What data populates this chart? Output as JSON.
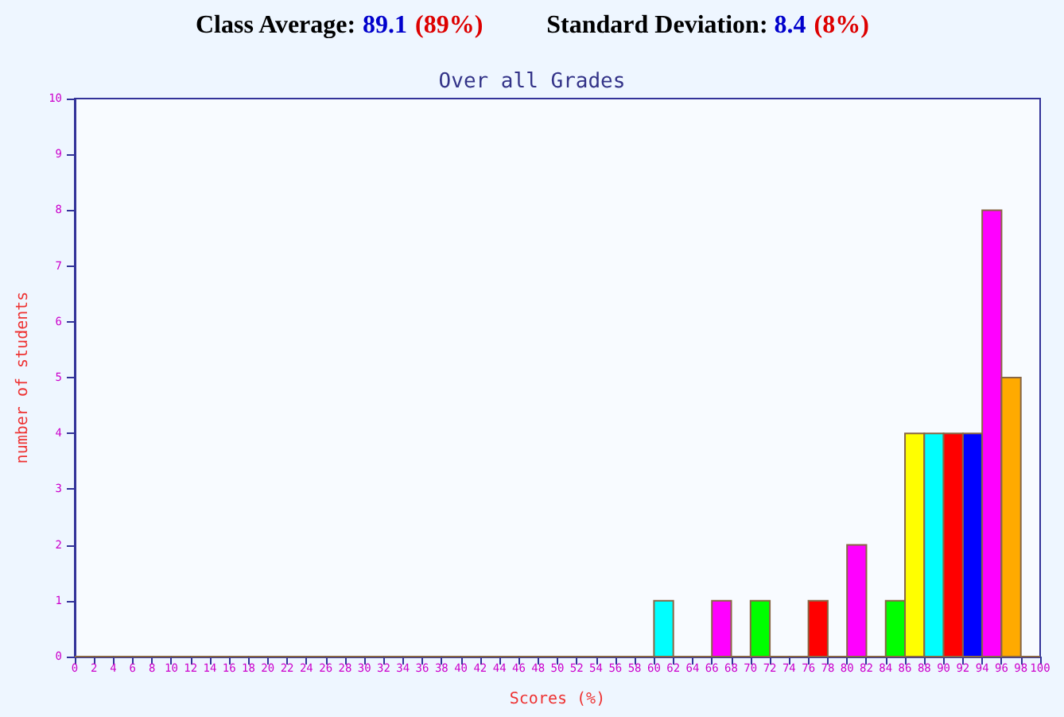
{
  "chart_data": {
    "type": "histogram",
    "title": "Over all Grades",
    "xlabel": "Scores (%)",
    "ylabel": "number of students",
    "annotations": [
      "Class Average: 89.1 (89%)",
      "Standard Deviation: 8.4 (8%)"
    ],
    "bins": [
      0,
      2,
      4,
      6,
      8,
      10,
      12,
      14,
      16,
      18,
      20,
      22,
      24,
      26,
      28,
      30,
      32,
      34,
      36,
      38,
      40,
      42,
      44,
      46,
      48,
      50,
      52,
      54,
      56,
      58,
      60,
      62,
      64,
      66,
      68,
      70,
      72,
      74,
      76,
      78,
      80,
      82,
      84,
      86,
      88,
      90,
      92,
      94,
      96,
      98,
      100
    ],
    "values": [
      0,
      0,
      0,
      0,
      0,
      0,
      0,
      0,
      0,
      0,
      0,
      0,
      0,
      0,
      0,
      0,
      0,
      0,
      0,
      0,
      0,
      0,
      0,
      0,
      0,
      0,
      0,
      0,
      0,
      0,
      1,
      0,
      0,
      1,
      0,
      1,
      0,
      0,
      1,
      0,
      2,
      0,
      1,
      4,
      4,
      4,
      4,
      8,
      5,
      0
    ],
    "colors": [
      null,
      null,
      null,
      null,
      null,
      null,
      null,
      null,
      null,
      null,
      null,
      null,
      null,
      null,
      null,
      null,
      null,
      null,
      null,
      null,
      null,
      null,
      null,
      null,
      null,
      null,
      null,
      null,
      null,
      null,
      "#00ffff",
      null,
      null,
      "#ff00ff",
      null,
      "#00ff00",
      null,
      null,
      "#ff0000",
      null,
      "#ff00ff",
      null,
      "#00ff00",
      "#ffff00",
      "#00ffff",
      "#ff0000",
      "#0000ff",
      "#ff00ff",
      "#ffaa00",
      null
    ],
    "xlim": [
      0,
      100
    ],
    "xticks": [
      0,
      2,
      4,
      6,
      8,
      10,
      12,
      14,
      16,
      18,
      20,
      22,
      24,
      26,
      28,
      30,
      32,
      34,
      36,
      38,
      40,
      42,
      44,
      46,
      48,
      50,
      52,
      54,
      56,
      58,
      60,
      62,
      64,
      66,
      68,
      70,
      72,
      74,
      76,
      78,
      80,
      82,
      84,
      86,
      88,
      90,
      92,
      94,
      96,
      98,
      100
    ],
    "ylim": [
      0,
      10
    ],
    "yticks": [
      0,
      1,
      2,
      3,
      4,
      5,
      6,
      7,
      8,
      9,
      10
    ],
    "grid": false
  }
}
